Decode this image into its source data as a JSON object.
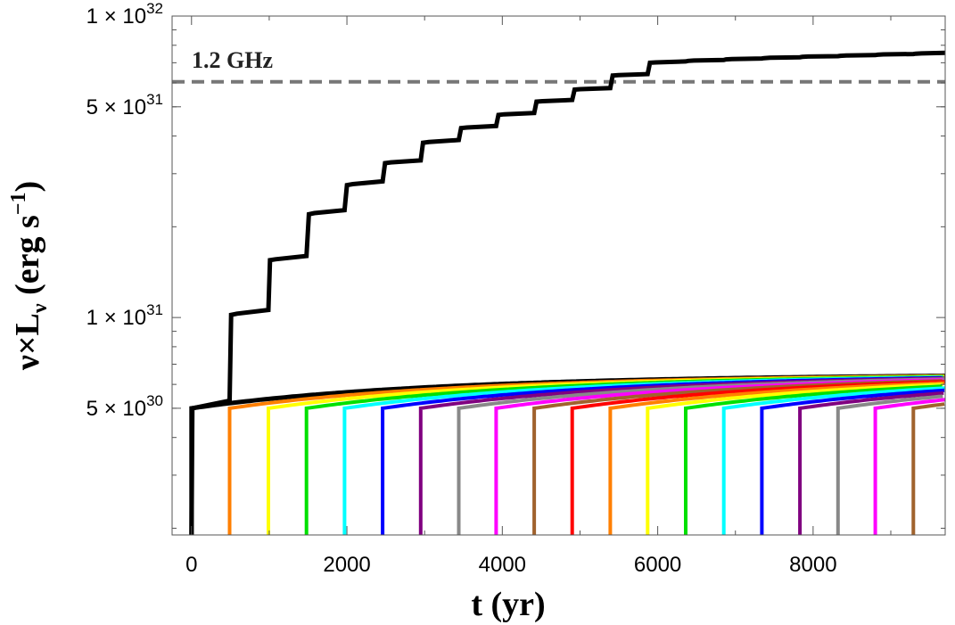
{
  "chart_data": {
    "type": "line",
    "title": "",
    "annotation": "1.2 GHz",
    "xlabel": "t (yr)",
    "ylabel": "ν×L",
    "ylabel_sub": "ν",
    "ylabel_units": " (erg s",
    "ylabel_exp": "−1",
    "ylabel_close": ")",
    "xlim": [
      -250,
      9700
    ],
    "ylim": [
      1.9e+30,
      1e+32
    ],
    "yscale": "log",
    "grid": false,
    "x_ticks": [
      {
        "value": 0,
        "label": "0"
      },
      {
        "value": 2000,
        "label": "2000"
      },
      {
        "value": 4000,
        "label": "4000"
      },
      {
        "value": 6000,
        "label": "6000"
      },
      {
        "value": 8000,
        "label": "8000"
      }
    ],
    "y_ticks": [
      {
        "value": 1e+32,
        "mant": "1",
        "exp": "32"
      },
      {
        "value": 5e+31,
        "mant": "5",
        "exp": "31"
      },
      {
        "value": 1e+31,
        "mant": "1",
        "exp": "31"
      },
      {
        "value": 5e+30,
        "mant": "5",
        "exp": "30"
      }
    ],
    "reference_line": {
      "y": 6.05e+31,
      "style": "dashed",
      "color": "#777777"
    },
    "total_line": {
      "color": "#000000",
      "x": [
        0,
        10,
        490,
        510,
        585,
        990,
        1010,
        1080,
        1480,
        1510,
        1580,
        1970,
        2000,
        2075,
        2460,
        2490,
        2565,
        2950,
        2980,
        3055,
        3440,
        3470,
        3545,
        3920,
        3950,
        4025,
        4410,
        4440,
        4515,
        4900,
        4930,
        5005,
        5390,
        5420,
        5495,
        5870,
        5900,
        5975,
        6360,
        6390,
        6465,
        6850,
        6880,
        6955,
        7340,
        7370,
        7445,
        7830,
        7860,
        7935,
        8320,
        8350,
        8425,
        8800,
        8830,
        8905,
        9290,
        9320,
        9395,
        9700
      ],
      "y": [
        1.9e+30,
        5e+30,
        5.3e+30,
        1.02e+31,
        1.03e+31,
        1.06e+31,
        1.55e+31,
        1.56e+31,
        1.6e+31,
        2.2e+31,
        2.22e+31,
        2.27e+31,
        2.75e+31,
        2.77e+31,
        2.83e+31,
        3.25e+31,
        3.27e+31,
        3.32e+31,
        3.8e+31,
        3.82e+31,
        3.88e+31,
        4.25e+31,
        4.27e+31,
        4.32e+31,
        4.7e+31,
        4.72e+31,
        4.77e+31,
        5.2e+31,
        5.22e+31,
        5.27e+31,
        5.7e+31,
        5.72e+31,
        5.77e+31,
        6.35e+31,
        6.37e+31,
        6.42e+31,
        7e+31,
        7.02e+31,
        7.07e+31,
        7.1e+31,
        7.12e+31,
        7.15e+31,
        7.18e+31,
        7.2e+31,
        7.23e+31,
        7.25e+31,
        7.27e+31,
        7.3e+31,
        7.32e+31,
        7.34e+31,
        7.36e+31,
        7.38e+31,
        7.4e+31,
        7.42e+31,
        7.44e+31,
        7.46e+31,
        7.48e+31,
        7.5e+31,
        7.52e+31,
        7.55e+31
      ]
    },
    "components": {
      "start_years": [
        0,
        490,
        990,
        1480,
        1970,
        2460,
        2950,
        3440,
        3920,
        4410,
        4900,
        5390,
        5870,
        6360,
        6850,
        7340,
        7830,
        8320,
        8800,
        9290
      ],
      "colors": [
        "#000000",
        "#ff7f00",
        "#ffff00",
        "#00e000",
        "#00ffff",
        "#0000ff",
        "#800080",
        "#888888",
        "#ff00ff",
        "#a0622d",
        "#ff0000",
        "#ff7f00",
        "#ffff00",
        "#00e000",
        "#00ffff",
        "#0000ff",
        "#800080",
        "#888888",
        "#ff00ff",
        "#a0622d"
      ],
      "y_initial": 5e+30,
      "y_final": 6.5e+30,
      "rise_timescale_yr": 3500
    }
  }
}
